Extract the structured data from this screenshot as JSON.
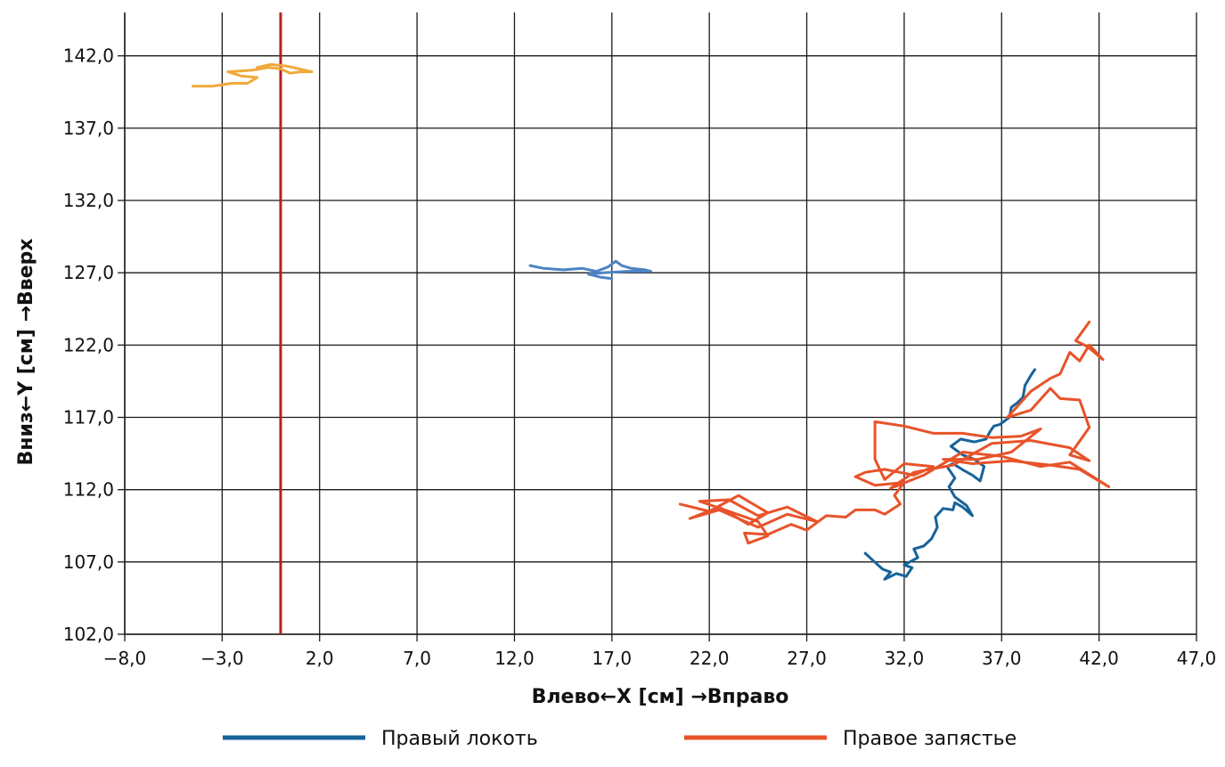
{
  "chart_data": {
    "type": "line",
    "xlabel": "Влево←X [см] →Вправо",
    "ylabel": "Вниз←Y [см] →Вверх",
    "xlim": [
      -8.0,
      47.0
    ],
    "ylim": [
      102.0,
      145.0
    ],
    "x_ticks": [
      "−8,0",
      "−3,0",
      "2,0",
      "7,0",
      "12,0",
      "17,0",
      "22,0",
      "27,0",
      "32,0",
      "37,0",
      "42,0",
      "47,0"
    ],
    "y_ticks": [
      "102,0",
      "107,0",
      "112,0",
      "117,0",
      "122,0",
      "127,0",
      "132,0",
      "137,0",
      "142,0"
    ],
    "grid": true,
    "legend_position": "bottom",
    "reference_line": {
      "x": 0.0,
      "color": "#b22222"
    },
    "series": [
      {
        "name": "Правый локоть",
        "color": "#17639a",
        "x": [
          30.0,
          30.4,
          30.9,
          31.3,
          31.0,
          31.6,
          32.1,
          32.4,
          32.0,
          32.7,
          32.5,
          33.0,
          33.4,
          33.7,
          33.6,
          34.0,
          34.5,
          34.6,
          35.0,
          35.5,
          35.2,
          34.6,
          34.3,
          34.6,
          34.2,
          34.5,
          35.1,
          35.5,
          35.9,
          36.1,
          35.6,
          35.0,
          34.4,
          34.9,
          35.6,
          36.2,
          36.4,
          36.6,
          36.9,
          37.4,
          37.5,
          37.8,
          38.1,
          38.2,
          38.5,
          38.7
        ],
        "y": [
          107.6,
          107.1,
          106.5,
          106.3,
          105.8,
          106.2,
          106.0,
          106.6,
          106.8,
          107.3,
          107.9,
          108.1,
          108.6,
          109.4,
          110.1,
          110.7,
          110.6,
          111.1,
          110.8,
          110.2,
          110.9,
          111.5,
          112.2,
          112.8,
          113.6,
          113.8,
          113.3,
          113.0,
          112.6,
          113.6,
          114.1,
          114.4,
          115.0,
          115.5,
          115.3,
          115.5,
          116.0,
          116.4,
          116.5,
          117.0,
          117.7,
          118.0,
          118.4,
          119.2,
          119.9,
          120.3
        ],
        "dash": "solid"
      },
      {
        "name": "Правое запястье",
        "color": "#e8532a",
        "x": [
          20.5,
          22.0,
          23.5,
          25.0,
          24.0,
          22.5,
          21.0,
          22.5,
          24.5,
          26.0,
          27.5,
          26.0,
          24.5,
          23.0,
          21.5,
          23.0,
          24.5,
          25.0,
          24.0,
          23.8,
          25.0,
          26.2,
          27.0,
          28.0,
          29.0,
          29.5,
          30.5,
          31.0,
          31.8,
          31.5,
          32.0,
          30.5,
          29.5,
          30.0,
          31.0,
          32.5,
          33.5,
          32.0,
          31.0,
          30.5,
          30.5,
          32.0,
          33.5,
          35.0,
          36.5,
          38.0,
          39.0,
          37.5,
          35.8,
          34.0,
          35.5,
          37.5,
          39.5,
          41.0,
          42.5,
          40.5,
          39.0,
          37.0,
          35.0,
          33.0,
          31.3,
          32.5,
          34.5,
          36.5,
          38.5,
          40.5,
          41.5,
          40.5,
          41.5,
          41.0,
          40.0,
          39.5,
          38.5,
          37.3,
          38.5,
          39.5,
          40.0,
          40.5,
          41.0,
          41.5,
          42.2,
          41.4,
          40.8,
          41.5
        ],
        "y": [
          111.0,
          110.5,
          111.6,
          110.4,
          109.6,
          110.8,
          110.0,
          110.6,
          109.4,
          110.3,
          109.8,
          110.8,
          110.2,
          111.3,
          111.2,
          110.5,
          109.8,
          108.8,
          108.3,
          109.0,
          108.9,
          109.6,
          109.2,
          110.2,
          110.1,
          110.6,
          110.6,
          110.3,
          111.0,
          111.6,
          112.5,
          112.3,
          112.9,
          113.2,
          113.4,
          113.0,
          113.6,
          113.8,
          112.7,
          114.1,
          116.7,
          116.4,
          115.9,
          115.9,
          115.6,
          115.7,
          116.2,
          114.6,
          114.1,
          114.1,
          113.8,
          114.0,
          113.7,
          113.4,
          112.2,
          113.9,
          113.6,
          114.3,
          114.6,
          113.0,
          112.1,
          113.2,
          113.7,
          115.2,
          115.4,
          114.9,
          114.0,
          114.4,
          116.3,
          118.2,
          118.3,
          119.0,
          117.5,
          117.0,
          118.8,
          119.7,
          120.0,
          121.5,
          120.9,
          122.0,
          121.0,
          121.9,
          122.3,
          123.6
        ],
        "dash": "solid"
      },
      {
        "name": "",
        "color": "#f0a93a",
        "x": [
          -4.5,
          -3.5,
          -2.5,
          -1.7,
          -1.2,
          -2.0,
          -2.7,
          -1.5,
          -0.6,
          0.0,
          0.5,
          1.0,
          1.6,
          0.3,
          -0.5,
          -1.2
        ],
        "y": [
          139.9,
          139.9,
          140.1,
          140.1,
          140.5,
          140.6,
          140.9,
          141.0,
          141.2,
          141.1,
          140.8,
          140.9,
          140.9,
          141.3,
          141.4,
          141.2
        ],
        "dash": "solid"
      },
      {
        "name": "",
        "color": "#4d83c4",
        "x": [
          12.8,
          13.5,
          14.5,
          15.5,
          16.2,
          16.8,
          17.2,
          17.5,
          18.0,
          18.7,
          19.0,
          17.8,
          16.5,
          15.8,
          16.4,
          17.0
        ],
        "y": [
          127.5,
          127.3,
          127.2,
          127.3,
          127.1,
          127.4,
          127.8,
          127.5,
          127.3,
          127.2,
          127.1,
          127.1,
          127.0,
          126.9,
          126.7,
          126.6
        ],
        "dash": "solid"
      }
    ]
  }
}
